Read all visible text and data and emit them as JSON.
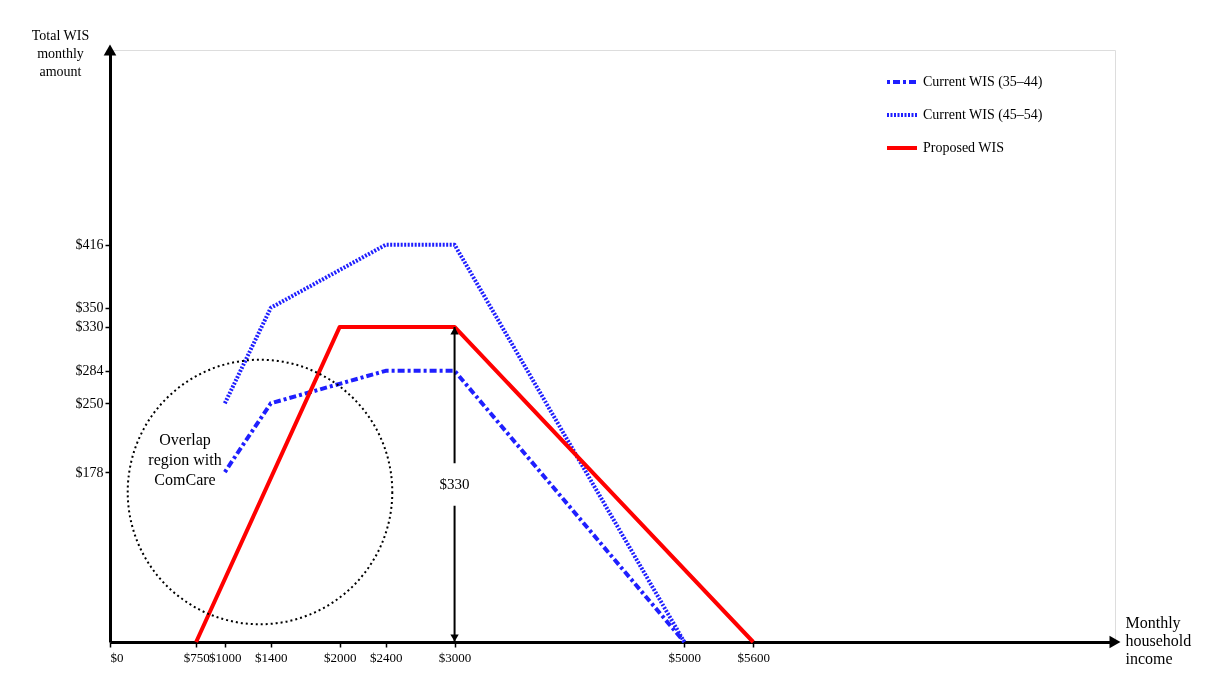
{
  "chart_data": {
    "type": "line",
    "xlabel": "Monthly household income",
    "ylabel": "Total WIS monthly amount",
    "xlim": [
      0,
      8750
    ],
    "ylim": [
      0,
      620
    ],
    "xticks": [
      {
        "value": 0,
        "label": "$0"
      },
      {
        "value": 750,
        "label": "$750"
      },
      {
        "value": 1000,
        "label": "$1000"
      },
      {
        "value": 1400,
        "label": "$1400"
      },
      {
        "value": 2000,
        "label": "$2000"
      },
      {
        "value": 2400,
        "label": "$2400"
      },
      {
        "value": 3000,
        "label": "$3000"
      },
      {
        "value": 5000,
        "label": "$5000"
      },
      {
        "value": 5600,
        "label": "$5600"
      }
    ],
    "yticks": [
      {
        "value": 178,
        "label": "$178"
      },
      {
        "value": 250,
        "label": "$250"
      },
      {
        "value": 284,
        "label": "$284"
      },
      {
        "value": 330,
        "label": "$330"
      },
      {
        "value": 350,
        "label": "$350"
      },
      {
        "value": 416,
        "label": "$416"
      }
    ],
    "grid": false,
    "legend": "top right",
    "marker": "none",
    "series": [
      {
        "name": "Current WIS (35–44)",
        "color": "#1f1fff",
        "line_style": "dashed",
        "x": [
          1000,
          1400,
          2400,
          3000,
          5000
        ],
        "values": [
          178,
          250,
          284,
          284,
          0
        ]
      },
      {
        "name": "Current WIS (45–54)",
        "color": "#1f1fff",
        "line_style": "dotted",
        "x": [
          1000,
          1400,
          2400,
          3000,
          5000
        ],
        "values": [
          250,
          350,
          416,
          416,
          0
        ]
      },
      {
        "name": "Proposed WIS",
        "color": "#ff0000",
        "line_style": "solid",
        "x": [
          750,
          2000,
          3000,
          5600
        ],
        "values": [
          0,
          330,
          330,
          0
        ]
      }
    ],
    "annotations": [
      "Overlap region with ComCare",
      {
        "text": "$330",
        "x": 3000,
        "y": 165
      }
    ]
  }
}
